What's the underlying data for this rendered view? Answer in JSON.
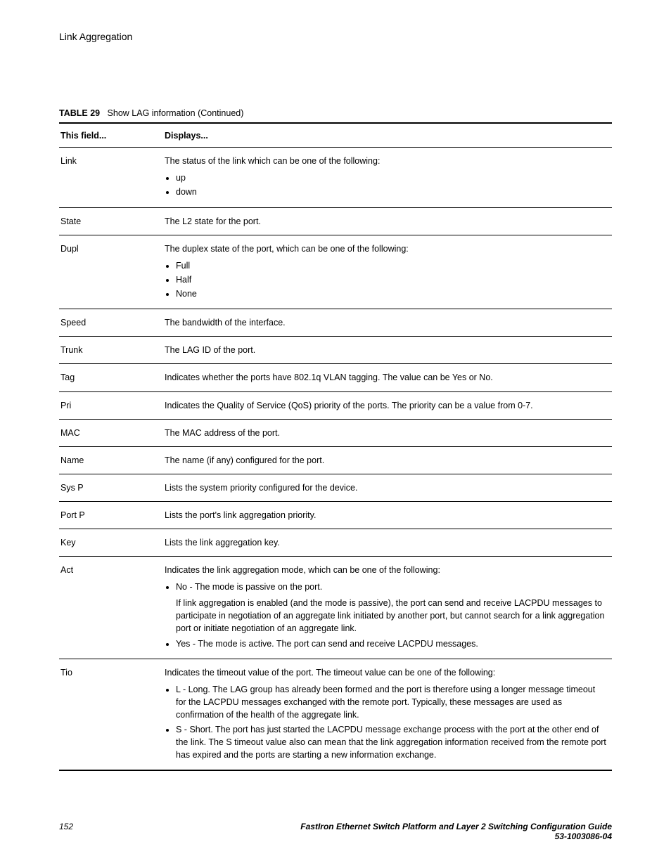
{
  "header": {
    "running_head": "Link Aggregation"
  },
  "table": {
    "caption_label": "TABLE 29",
    "caption_text": "Show LAG information (Continued)",
    "head_field": "This field...",
    "head_displays": "Displays...",
    "rows": {
      "link": {
        "field": "Link",
        "intro": "The status of the link which can be one of the following:",
        "items": [
          "up",
          "down"
        ]
      },
      "state": {
        "field": "State",
        "text": "The L2 state for the port."
      },
      "dupl": {
        "field": "Dupl",
        "intro": "The duplex state of the port, which can be one of the following:",
        "items": [
          "Full",
          "Half",
          "None"
        ]
      },
      "speed": {
        "field": "Speed",
        "text": "The bandwidth of the interface."
      },
      "trunk": {
        "field": "Trunk",
        "text": "The LAG ID of the port."
      },
      "tag": {
        "field": "Tag",
        "text": "Indicates whether the ports have 802.1q VLAN tagging. The value can be Yes or No."
      },
      "pri": {
        "field": "Pri",
        "text": "Indicates the Quality of Service (QoS) priority of the ports. The priority can be a value from 0-7."
      },
      "mac": {
        "field": "MAC",
        "text": "The MAC address of the port."
      },
      "name": {
        "field": "Name",
        "text": "The name (if any) configured for the port."
      },
      "sysp": {
        "field": "Sys P",
        "text": "Lists the system priority configured for the device."
      },
      "portp": {
        "field": "Port P",
        "text": "Lists the port's link aggregation priority."
      },
      "key": {
        "field": "Key",
        "text": "Lists the link aggregation key."
      },
      "act": {
        "field": "Act",
        "intro": "Indicates the link aggregation mode, which can be one of the following:",
        "item_no": "No - The mode is passive on the port.",
        "note": "If link aggregation is enabled (and the mode is passive), the port can send and receive LACPDU messages to participate in negotiation of an aggregate link initiated by another port, but cannot search for a link aggregation port or initiate negotiation of an aggregate link.",
        "item_yes": "Yes - The mode is active. The port can send and receive LACPDU messages."
      },
      "tio": {
        "field": "Tio",
        "intro": "Indicates the timeout value of the port. The timeout value can be one of the following:",
        "item_l": "L - Long. The LAG group has already been formed and the port is therefore using a longer message timeout for the LACPDU messages exchanged with the remote port. Typically, these messages are used as confirmation of the health of the aggregate link.",
        "item_s": "S - Short. The port has just started the LACPDU message exchange process with the port at the other end of the link. The S timeout value also can mean that the link aggregation information received from the remote port has expired and the ports are starting a new information exchange."
      }
    }
  },
  "footer": {
    "page_number": "152",
    "doc_title_line1": "FastIron Ethernet Switch Platform and Layer 2 Switching Configuration Guide",
    "doc_title_line2": "53-1003086-04"
  }
}
